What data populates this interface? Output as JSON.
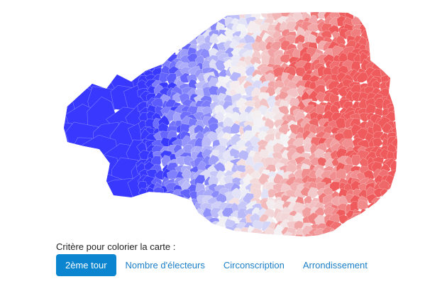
{
  "map": {
    "color_scale": {
      "left_party": "#3838ff",
      "neutral": "#f4f4f6",
      "right_party": "#ee3b3b"
    }
  },
  "controls": {
    "label": "Critère pour colorier la carte :",
    "options": [
      {
        "label": "2ème tour",
        "active": true
      },
      {
        "label": "Nombre d'électeurs",
        "active": false
      },
      {
        "label": "Circonscription",
        "active": false
      },
      {
        "label": "Arrondissement",
        "active": false
      }
    ]
  }
}
